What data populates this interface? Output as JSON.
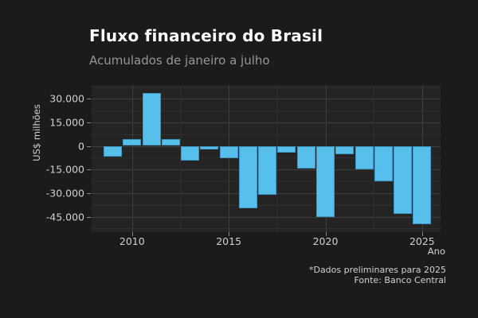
{
  "title": "Fluxo financeiro do Brasil",
  "subtitle": "Acumulados de janeiro a julho",
  "y_axis": {
    "title": "US$ milhões",
    "ticks": [
      "30.000",
      "15.000",
      "0",
      "-15.000",
      "-30.000",
      "-45.000"
    ],
    "tick_values": [
      30000,
      15000,
      0,
      -15000,
      -30000,
      -45000
    ]
  },
  "x_axis": {
    "title": "Ano",
    "ticks": [
      "2010",
      "2015",
      "2020",
      "2025"
    ],
    "tick_values": [
      2010,
      2015,
      2020,
      2025
    ]
  },
  "footnotes": [
    "*Dados preliminares para 2025",
    "Fonte: Banco Central"
  ],
  "colors": {
    "background": "#1b1b1b",
    "panel": "#242424",
    "bar": "#56bfec",
    "title_text": "#ffffff",
    "subtitle_text": "#979797",
    "axis_text": "#cfcfcf"
  },
  "chart_data": {
    "type": "bar",
    "title": "Fluxo financeiro do Brasil",
    "subtitle": "Acumulados de janeiro a julho",
    "xlabel": "Ano",
    "ylabel": "US$ milhões",
    "x": [
      2009,
      2010,
      2011,
      2012,
      2013,
      2014,
      2015,
      2016,
      2017,
      2018,
      2019,
      2020,
      2021,
      2022,
      2023,
      2024,
      2025
    ],
    "values": [
      -6600,
      4100,
      33700,
      4200,
      -9200,
      -2300,
      -7700,
      -39700,
      -31300,
      -4400,
      -14400,
      -45100,
      -5100,
      -15000,
      -22400,
      -43100,
      -49900
    ],
    "ylim": [
      -54000,
      38000
    ],
    "xlim": [
      2008.3,
      2026
    ],
    "grid": "major and minor, horizontal and vertical",
    "legend": "none",
    "bar_color": "#56bfec",
    "source": "Fonte: Banco Central",
    "note": "*Dados preliminares para 2025"
  }
}
